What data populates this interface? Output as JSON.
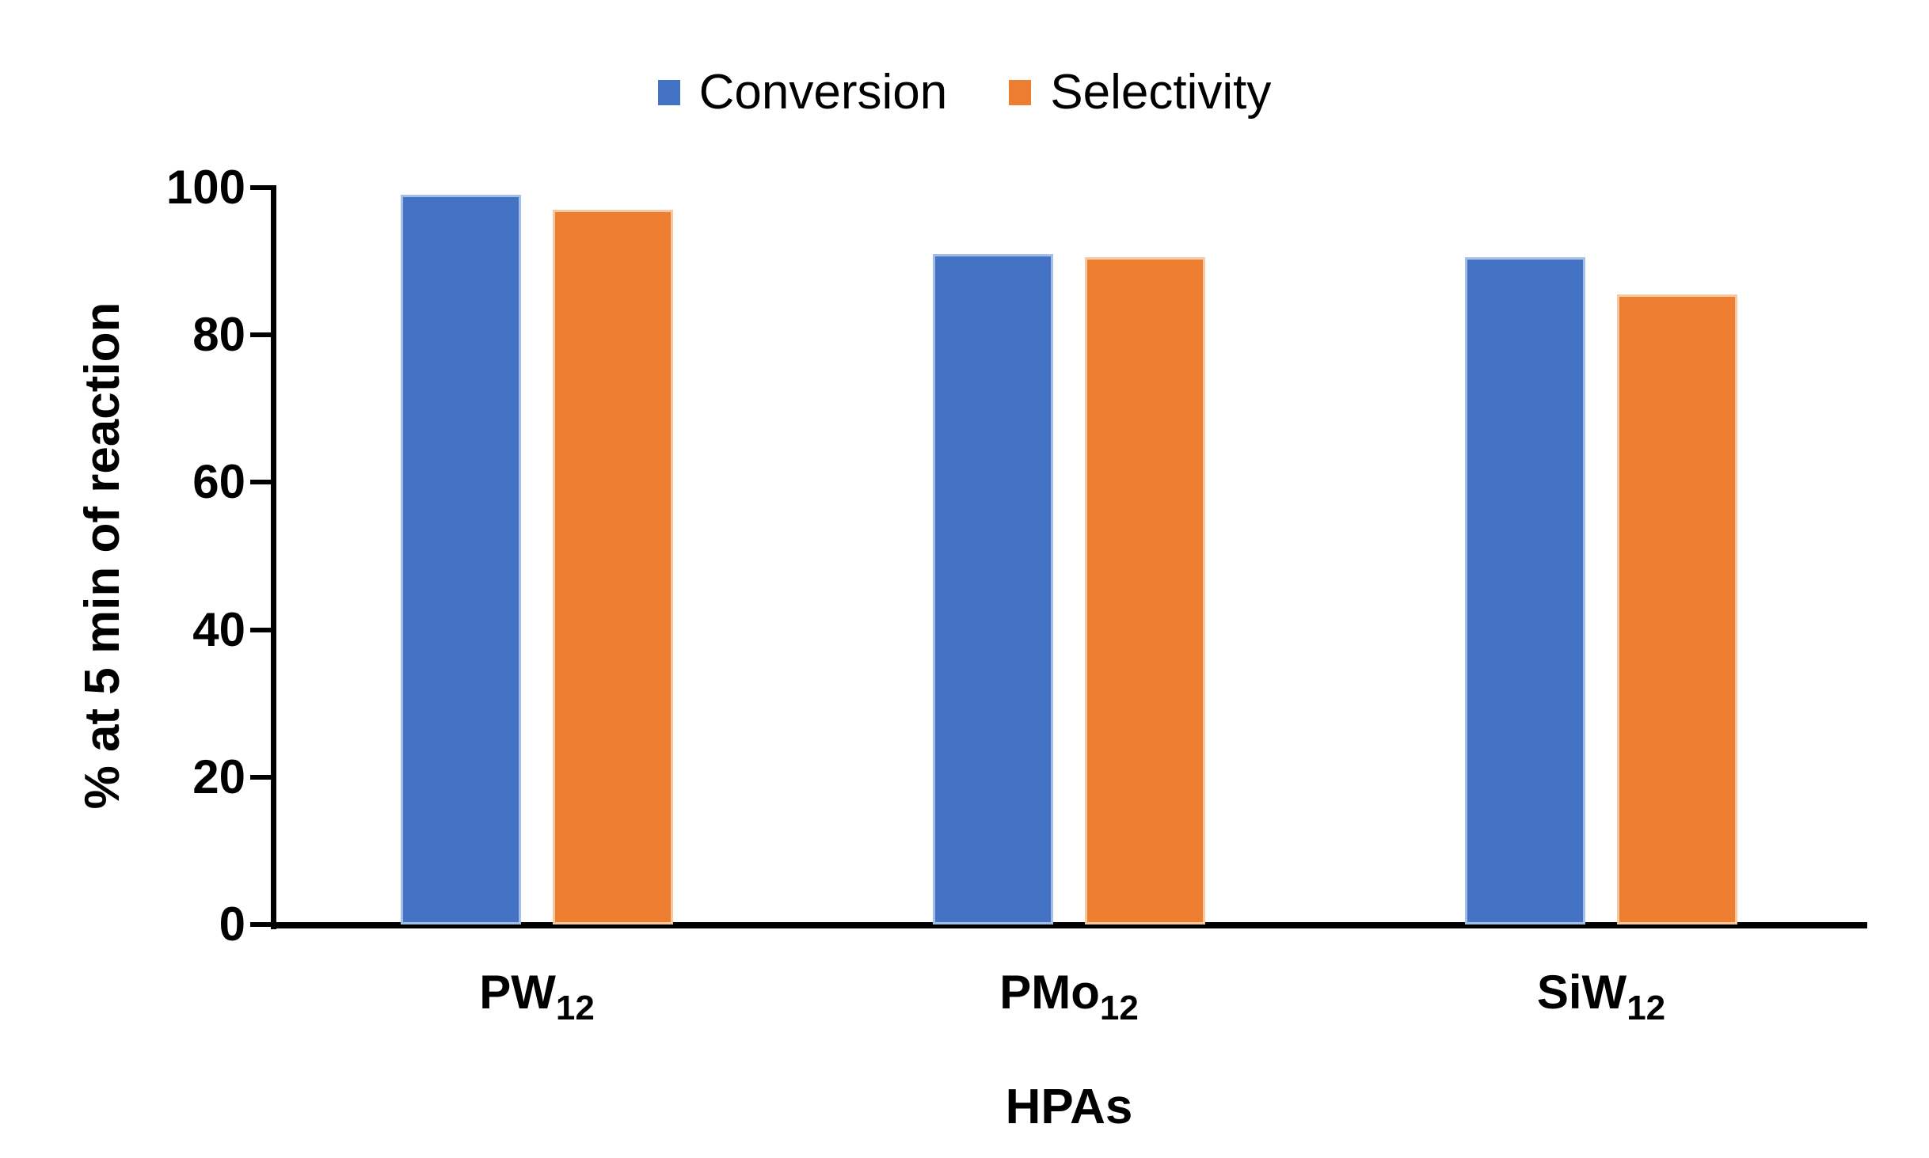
{
  "chart_data": {
    "type": "bar",
    "title": "",
    "categories": [
      {
        "base": "PW",
        "sub": "12"
      },
      {
        "base": "PMo",
        "sub": "12"
      },
      {
        "base": "SiW",
        "sub": "12"
      }
    ],
    "series": [
      {
        "name": "Conversion",
        "color": "#4472C4",
        "border_color": "#A5BEE4",
        "values": [
          99,
          91,
          90.5
        ]
      },
      {
        "name": "Selectivity",
        "color": "#ED7D31",
        "border_color": "#F5C9A4",
        "values": [
          97,
          90.5,
          85.5
        ]
      }
    ],
    "xlabel": "HPAs",
    "ylabel": "% at 5 min of reaction",
    "ylim": [
      0,
      100
    ],
    "yticks": [
      0,
      20,
      40,
      60,
      80,
      100
    ],
    "legend_position": "top-center",
    "grid": false,
    "axis_color": "#000000",
    "text_color": "#000000",
    "background_color": "#FFFFFF"
  }
}
